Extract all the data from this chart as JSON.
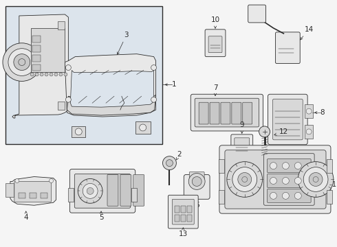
{
  "bg": "#f5f5f5",
  "lc": "#2a2a2a",
  "fc_light": "#e8e8e8",
  "fc_mid": "#d8d8d8",
  "fc_dark": "#c8c8c8",
  "box_bg": "#dce4ec",
  "white": "#ffffff",
  "fig_w": 4.9,
  "fig_h": 3.6,
  "dpi": 100
}
